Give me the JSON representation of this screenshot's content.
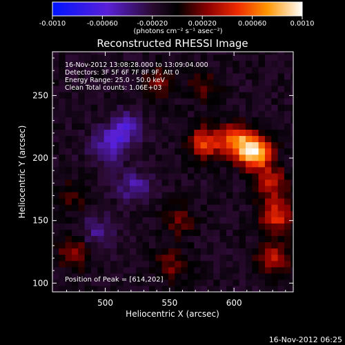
{
  "colorbar": {
    "ticks": [
      "-0.0010",
      "-0.00060",
      "-0.00020",
      "0.00020",
      "0.00060",
      "0.0010"
    ],
    "units": "(photons cm⁻² s⁻¹ asec⁻²)",
    "range": [
      -0.001,
      0.001
    ]
  },
  "chart_data": {
    "type": "heatmap",
    "title": "Reconstructed RHESSI Image",
    "xlabel": "Heliocentric X (arcsec)",
    "ylabel": "Heliocentric Y (arcsec)",
    "xlim": [
      459,
      646
    ],
    "ylim": [
      93,
      285
    ],
    "xticks": [
      500,
      550,
      600
    ],
    "yticks": [
      100,
      150,
      200,
      250
    ],
    "annotations": [
      "16-Nov-2012 13:08:28.000 to 13:09:04.000",
      "Detectors: 3F 5F 6F 7F 8F 9F, Att 0",
      "Energy Range: 25.0 - 50.0 keV",
      "Clean    Total counts: 1.06E+03"
    ],
    "peak_label": "Position of Peak = [614,202]",
    "peak": [
      614,
      202
    ],
    "sources": [
      {
        "x": 614,
        "y": 202,
        "value": 0.001
      },
      {
        "x": 600,
        "y": 212,
        "value": 0.0007
      },
      {
        "x": 575,
        "y": 210,
        "value": 0.0006
      },
      {
        "x": 630,
        "y": 152,
        "value": 0.0006
      },
      {
        "x": 627,
        "y": 178,
        "value": 0.00045
      },
      {
        "x": 555,
        "y": 148,
        "value": 0.0003
      },
      {
        "x": 628,
        "y": 118,
        "value": 0.0005
      },
      {
        "x": 474,
        "y": 122,
        "value": 0.0004
      },
      {
        "x": 470,
        "y": 166,
        "value": 0.00025
      },
      {
        "x": 540,
        "y": 258,
        "value": 0.0003
      },
      {
        "x": 575,
        "y": 255,
        "value": 0.00025
      },
      {
        "x": 548,
        "y": 112,
        "value": 0.0003
      },
      {
        "x": 512,
        "y": 220,
        "value": -0.00045
      },
      {
        "x": 498,
        "y": 205,
        "value": -0.00035
      },
      {
        "x": 520,
        "y": 175,
        "value": -0.0003
      },
      {
        "x": 490,
        "y": 138,
        "value": -0.00025
      }
    ]
  },
  "footer": {
    "timestamp": "16-Nov-2012 06:25"
  }
}
